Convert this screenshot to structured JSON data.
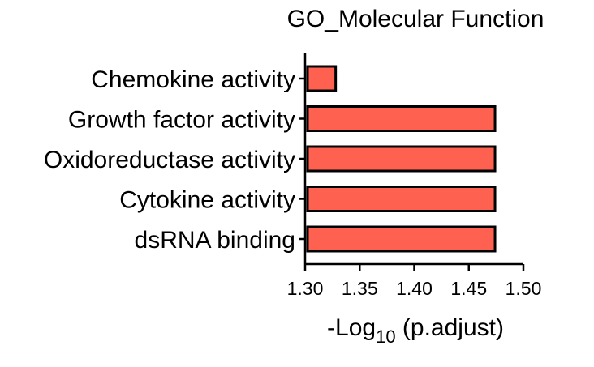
{
  "chart_data": {
    "type": "bar",
    "orientation": "horizontal",
    "title": "GO_Molecular Function",
    "xlabel_main": "-Log",
    "xlabel_sub": "10",
    "xlabel_rest": " (p.adjust)",
    "categories": [
      "Chemokine activity",
      "Growth factor activity",
      "Oxidoreductase activity",
      "Cytokine activity",
      "dsRNA binding"
    ],
    "values": [
      1.328,
      1.474,
      1.474,
      1.474,
      1.474
    ],
    "xlim": [
      1.3,
      1.5
    ],
    "xticks": [
      "1.30",
      "1.35",
      "1.40",
      "1.45",
      "1.50"
    ],
    "grid": false,
    "legend": "none",
    "bar_color": "#FF6150",
    "bar_edge_color": "#000000"
  }
}
